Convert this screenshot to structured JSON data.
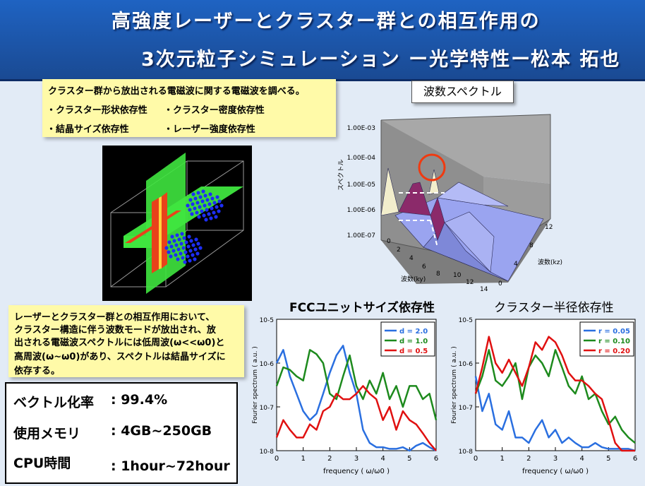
{
  "title": {
    "line1": "高強度レーザーとクラスター群との相互作用の",
    "line2": "3次元粒子シミュレーション ー光学特性ー",
    "author": "松本 拓也"
  },
  "intro_note": {
    "text": "クラスター群から放出される電磁波に関する電磁波を調べる。",
    "items": [
      "・クラスター形状依存性",
      "・クラスター密度依存性",
      "・結晶サイズ依存性",
      "・レーザー強度依存性"
    ]
  },
  "summary_note": {
    "lines": [
      "レーザーとクラスター群との相互作用において、",
      "クラスター構造に伴う波数モードが放出され、放",
      "出される電磁波スペクトルには低周波(ω<<ω0)と",
      "高周波(ω~ω0)があり、スペクトルは結晶サイズに",
      "依存する。"
    ]
  },
  "stats": [
    {
      "label": "ベクトル化率",
      "value": ": 99.4%"
    },
    {
      "label": "使用メモリ",
      "value": ": 4GB~250GB"
    },
    {
      "label": "CPU時間",
      "value": ": 1hour~72hour"
    }
  ],
  "spectrum3d": {
    "title": "波数スペクトル",
    "z_label": "スペクトル",
    "z_ticks": [
      "1.00E-03",
      "1.00E-04",
      "1.00E-05",
      "1.00E-06",
      "1.00E-07"
    ],
    "ky_label": "波数(ky)",
    "ky_ticks": [
      "0",
      "2",
      "4",
      "6",
      "8",
      "10",
      "12",
      "14"
    ],
    "kz_label": "波数(kz)",
    "kz_ticks": [
      "0",
      "4",
      "8",
      "12"
    ],
    "colors": {
      "surface": "#9aa4f0",
      "peak": "#8b2a6a",
      "highlight": "#f03a10"
    }
  },
  "chart_data": [
    {
      "type": "line",
      "title": "FCCユニットサイズ依存性",
      "xlabel": "frequency ( ω/ω0 )",
      "ylabel": "Fourier spectrum ( a.u. )",
      "xlim": [
        0,
        6
      ],
      "ylim": [
        1e-08,
        1e-05
      ],
      "yscale": "log",
      "x_ticks": [
        "0",
        "1",
        "2",
        "3",
        "4",
        "5",
        "6"
      ],
      "y_ticks": [
        "10-5",
        "10-6",
        "10-7",
        "10-8"
      ],
      "legend_position": "top-right",
      "x": [
        0,
        0.25,
        0.5,
        0.75,
        1,
        1.25,
        1.5,
        1.75,
        2,
        2.25,
        2.5,
        2.75,
        3,
        3.25,
        3.5,
        3.75,
        4,
        4.25,
        4.5,
        4.75,
        5,
        5.25,
        5.5,
        5.75,
        6
      ],
      "series": [
        {
          "name": "d = 2.0",
          "color": "#2a6fe0",
          "values": [
            1e-06,
            2e-06,
            5e-07,
            2e-07,
            8e-08,
            5e-08,
            7e-08,
            2e-07,
            6e-07,
            1.5e-06,
            2.5e-06,
            6e-07,
            2e-07,
            3e-08,
            1.5e-08,
            1.2e-08,
            1.2e-08,
            1.1e-08,
            1.1e-08,
            1.2e-08,
            1e-08,
            1.3e-08,
            1.5e-08,
            1.2e-08,
            1e-08
          ]
        },
        {
          "name": "d = 1.0",
          "color": "#1d8a1d",
          "values": [
            3e-07,
            8e-07,
            7e-07,
            5e-07,
            4e-07,
            2e-06,
            1.6e-06,
            1e-06,
            2e-07,
            1.5e-07,
            5e-07,
            1.5e-06,
            3e-07,
            1.5e-07,
            4e-07,
            2e-07,
            6e-07,
            1.5e-07,
            3e-07,
            1e-07,
            3e-07,
            3e-07,
            1.5e-07,
            2e-07,
            5e-08
          ]
        },
        {
          "name": "d = 0.5",
          "color": "#e01010",
          "values": [
            2e-08,
            5e-08,
            3e-08,
            2e-08,
            2e-08,
            4e-08,
            3e-08,
            8e-08,
            1e-07,
            2e-07,
            1.5e-07,
            1.5e-07,
            2e-07,
            3e-07,
            2e-07,
            1.5e-07,
            5e-08,
            1e-07,
            3e-08,
            8e-08,
            5e-08,
            4e-08,
            2.5e-08,
            1.5e-08,
            1e-08
          ]
        }
      ]
    },
    {
      "type": "line",
      "title": "クラスター半径依存性",
      "xlabel": "frequency ( ω/ω0 )",
      "ylabel": "Fourier spectrum ( a.u. )",
      "xlim": [
        0,
        6
      ],
      "ylim": [
        1e-08,
        1e-05
      ],
      "yscale": "log",
      "x_ticks": [
        "0",
        "1",
        "2",
        "3",
        "4",
        "5",
        "6"
      ],
      "y_ticks": [
        "10-5",
        "10-6",
        "10-7",
        "10-8"
      ],
      "legend_position": "top-right",
      "x": [
        0,
        0.25,
        0.5,
        0.75,
        1,
        1.25,
        1.5,
        1.75,
        2,
        2.25,
        2.5,
        2.75,
        3,
        3.25,
        3.5,
        3.75,
        4,
        4.25,
        4.5,
        4.75,
        5,
        5.25,
        5.5,
        5.75,
        6
      ],
      "series": [
        {
          "name": "r = 0.05",
          "color": "#2a6fe0",
          "values": [
            5e-07,
            8e-08,
            2e-07,
            4e-08,
            3e-08,
            8e-08,
            2e-08,
            2e-08,
            1.5e-08,
            3e-08,
            5e-08,
            2e-08,
            3e-08,
            1.5e-08,
            2e-08,
            1.5e-08,
            1.2e-08,
            1.2e-08,
            1.5e-08,
            1.2e-08,
            1.1e-08,
            1.1e-08,
            1.1e-08,
            1.1e-08,
            1e-08
          ]
        },
        {
          "name": "r = 0.10",
          "color": "#1d8a1d",
          "values": [
            2e-07,
            5e-07,
            2e-06,
            4e-07,
            3e-07,
            5e-07,
            1e-06,
            1.5e-07,
            8e-07,
            1.5e-06,
            1e-06,
            5e-07,
            2e-06,
            8e-07,
            3e-07,
            2e-07,
            5e-07,
            1.5e-07,
            2e-07,
            8e-08,
            4e-08,
            6e-08,
            3e-08,
            2e-08,
            1.5e-08
          ]
        },
        {
          "name": "r = 0.20",
          "color": "#e01010",
          "values": [
            2e-07,
            8e-07,
            4e-06,
            1e-06,
            6e-07,
            1.2e-06,
            6e-07,
            3e-07,
            8e-07,
            3e-06,
            2e-06,
            4e-06,
            3e-06,
            1.5e-06,
            6e-07,
            4e-07,
            4e-07,
            3e-07,
            2e-07,
            1.5e-07,
            5e-08,
            1.5e-08,
            1e-08,
            1e-08,
            1e-08
          ]
        }
      ]
    }
  ]
}
